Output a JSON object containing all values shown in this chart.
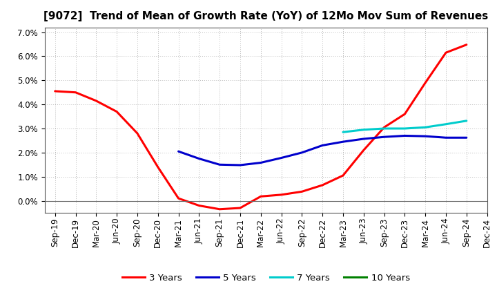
{
  "title": "[9072]  Trend of Mean of Growth Rate (YoY) of 12Mo Mov Sum of Revenues",
  "ylim": [
    -0.005,
    0.072
  ],
  "yticks": [
    0.0,
    0.01,
    0.02,
    0.03,
    0.04,
    0.05,
    0.06,
    0.07
  ],
  "x_labels": [
    "Sep-19",
    "Dec-19",
    "Mar-20",
    "Jun-20",
    "Sep-20",
    "Dec-20",
    "Mar-21",
    "Jun-21",
    "Sep-21",
    "Dec-21",
    "Mar-22",
    "Jun-22",
    "Sep-22",
    "Dec-22",
    "Mar-23",
    "Jun-23",
    "Sep-23",
    "Dec-23",
    "Mar-24",
    "Jun-24",
    "Sep-24",
    "Dec-24"
  ],
  "series": {
    "3 Years": {
      "color": "#FF0000",
      "data_x": [
        0,
        1,
        2,
        3,
        4,
        5,
        6,
        7,
        8,
        9,
        10,
        11,
        12,
        13,
        14,
        15,
        16,
        17,
        18,
        19,
        20
      ],
      "data_y": [
        0.0455,
        0.045,
        0.0415,
        0.037,
        0.028,
        0.014,
        0.001,
        -0.002,
        -0.0035,
        -0.003,
        0.0018,
        0.0025,
        0.0038,
        0.0065,
        0.0105,
        0.021,
        0.0305,
        0.036,
        0.049,
        0.0615,
        0.0648
      ]
    },
    "5 Years": {
      "color": "#0000CC",
      "data_x": [
        6,
        7,
        8,
        9,
        10,
        11,
        12,
        13,
        14,
        15,
        16,
        17,
        18,
        19,
        20
      ],
      "data_y": [
        0.0205,
        0.0175,
        0.015,
        0.0148,
        0.0158,
        0.0178,
        0.02,
        0.023,
        0.0245,
        0.0257,
        0.0265,
        0.027,
        0.0268,
        0.0262,
        0.0262
      ]
    },
    "7 Years": {
      "color": "#00CCCC",
      "data_x": [
        14,
        15,
        16,
        17,
        18,
        19,
        20
      ],
      "data_y": [
        0.0285,
        0.0295,
        0.03,
        0.03,
        0.0305,
        0.0318,
        0.0332
      ]
    },
    "10 Years": {
      "color": "#008000",
      "data_x": [],
      "data_y": []
    }
  },
  "background_color": "#FFFFFF",
  "plot_bg_color": "#FFFFFF",
  "grid_color": "#BBBBBB",
  "title_fontsize": 11,
  "tick_fontsize": 8.5,
  "legend_fontsize": 9.5
}
